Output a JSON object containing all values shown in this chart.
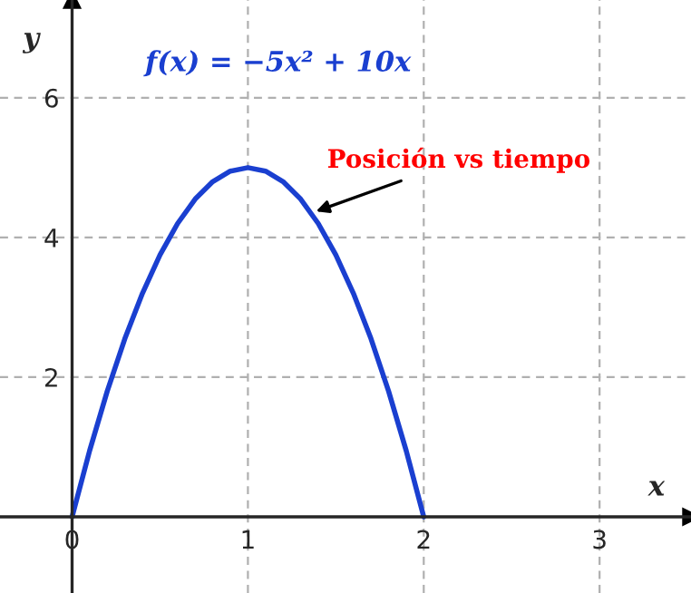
{
  "chart_data": {
    "type": "line",
    "title": "f(x) = −5x² + 10x",
    "xlabel": "x",
    "ylabel": "y",
    "x": [
      0,
      0.1,
      0.2,
      0.3,
      0.4,
      0.5,
      0.6,
      0.7,
      0.8,
      0.9,
      1,
      1.1,
      1.2,
      1.3,
      1.4,
      1.5,
      1.6,
      1.7,
      1.8,
      1.9,
      2
    ],
    "series": [
      {
        "color": "#1a3fd0",
        "values": [
          0,
          0.95,
          1.8,
          2.55,
          3.2,
          3.75,
          4.2,
          4.55,
          4.8,
          4.95,
          5,
          4.95,
          4.8,
          4.55,
          4.2,
          3.75,
          3.2,
          2.55,
          1.8,
          0.95,
          0
        ]
      }
    ],
    "annotations": [
      {
        "text": "Posición vs tiempo",
        "x": 1.36,
        "y": 4.35
      }
    ],
    "xlim": [
      -0.41,
      3.52
    ],
    "ylim": [
      -1.09,
      7.4
    ],
    "xticks": [
      0,
      1,
      2,
      3
    ],
    "yticks": [
      2,
      4,
      6
    ],
    "grid": true,
    "line_style": "solid",
    "marker": "none"
  }
}
